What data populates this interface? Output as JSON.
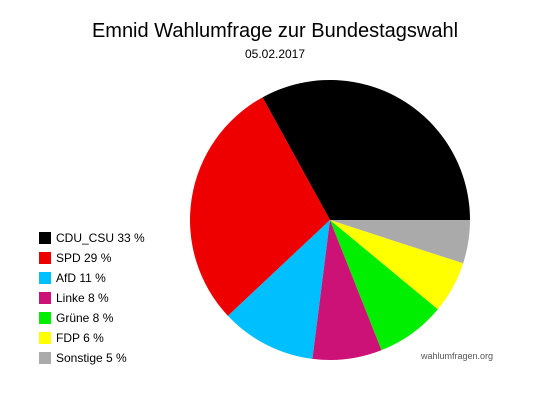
{
  "chart_data": {
    "type": "pie",
    "title": "Emnid Wahlumfrage zur Bundestagswahl",
    "subtitle": "05.02.2017",
    "legend_position": "left",
    "slices": [
      {
        "label": "CDU_CSU 33 %",
        "value": 33,
        "color": "#000000"
      },
      {
        "label": "SPD 29 %",
        "value": 29,
        "color": "#ee0000"
      },
      {
        "label": "AfD 11 %",
        "value": 11,
        "color": "#00bfff"
      },
      {
        "label": "Linke 8 %",
        "value": 8,
        "color": "#cc1177"
      },
      {
        "label": "Grüne 8 %",
        "value": 8,
        "color": "#00ee00"
      },
      {
        "label": "FDP 6 %",
        "value": 6,
        "color": "#ffff00"
      },
      {
        "label": "Sonstige 5 %",
        "value": 5,
        "color": "#aaaaaa"
      }
    ],
    "source": "wahlumfragen.org"
  }
}
